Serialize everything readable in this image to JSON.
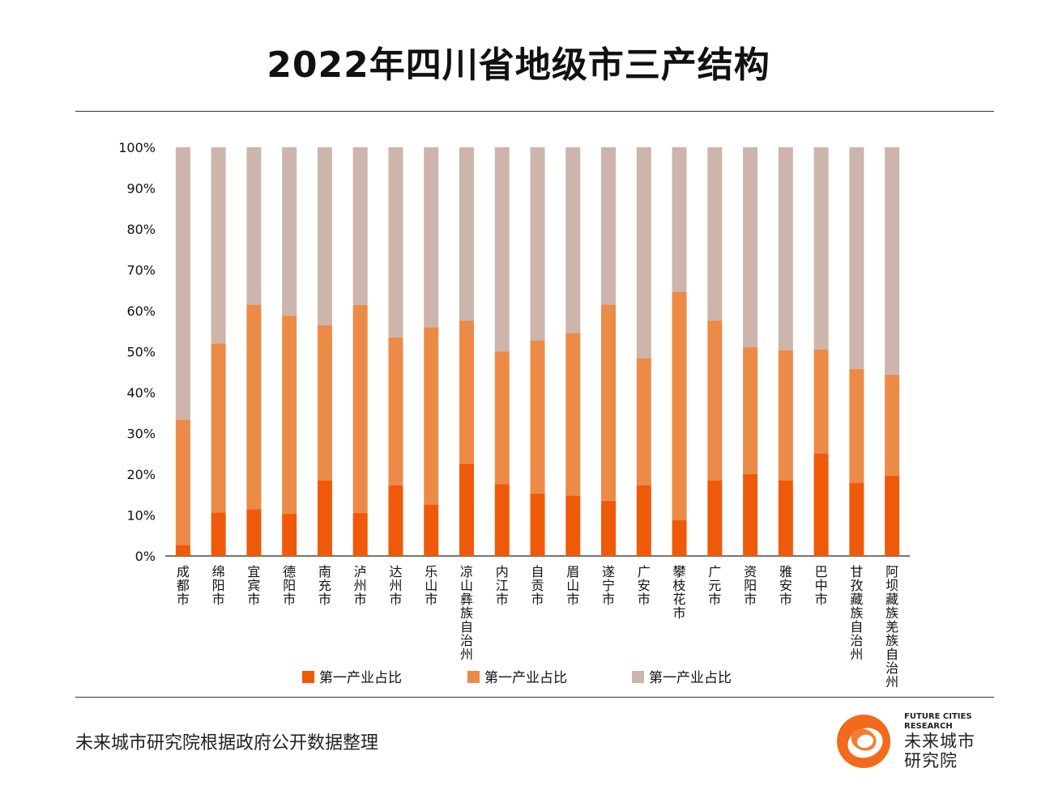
{
  "title": "2022年四川省地级市三产结构",
  "source": "未来城市研究院根据政府公开数据整理",
  "logo": {
    "en_line1": "FUTURE CITIES",
    "en_line2": "RESEARCH",
    "cn_line1": "未来城市",
    "cn_line2": "研究院"
  },
  "colors": {
    "primary": "#ef5a0a",
    "secondary": "#ec8b47",
    "tertiary": "#cdb5ac",
    "text": "#111111",
    "rule": "#333333"
  },
  "chart_data": {
    "type": "bar",
    "stacked": true,
    "title": "2022年四川省地级市三产结构",
    "ylim": [
      0,
      100
    ],
    "ytick_labels": [
      "0%",
      "10%",
      "20%",
      "30%",
      "40%",
      "50%",
      "60%",
      "70%",
      "80%",
      "90%",
      "100%"
    ],
    "categories": [
      "成都市",
      "绵阳市",
      "宜宾市",
      "德阳市",
      "南充市",
      "泸州市",
      "达州市",
      "乐山市",
      "凉山彝族自治州",
      "内江市",
      "自贡市",
      "眉山市",
      "遂宁市",
      "广安市",
      "攀枝花市",
      "广元市",
      "资阳市",
      "雅安市",
      "巴中市",
      "甘孜藏族自治州",
      "阿坝藏族羌族自治州"
    ],
    "series": [
      {
        "name": "第一产业占比",
        "color": "#ef5a0a",
        "values": [
          2.7,
          10.6,
          11.4,
          10.3,
          18.5,
          10.5,
          17.3,
          12.6,
          22.6,
          17.6,
          15.3,
          14.8,
          13.5,
          17.3,
          8.8,
          18.5,
          20.0,
          18.5,
          25.1,
          17.9,
          19.6
        ]
      },
      {
        "name": "第一产业占比",
        "color": "#ec8b47",
        "values": [
          30.7,
          41.4,
          50.1,
          48.5,
          38.0,
          50.9,
          36.2,
          43.4,
          35.0,
          32.4,
          37.5,
          39.8,
          48.0,
          31.1,
          55.9,
          39.1,
          31.1,
          31.8,
          25.4,
          27.9,
          24.8
        ]
      },
      {
        "name": "第一产业占比",
        "color": "#cdb5ac",
        "values": [
          66.6,
          48.0,
          38.5,
          41.2,
          43.5,
          38.6,
          46.5,
          44.0,
          42.4,
          50.0,
          47.2,
          45.4,
          38.5,
          51.6,
          35.3,
          42.4,
          48.9,
          49.7,
          49.5,
          54.2,
          55.6
        ]
      }
    ],
    "legend_position": "bottom"
  }
}
